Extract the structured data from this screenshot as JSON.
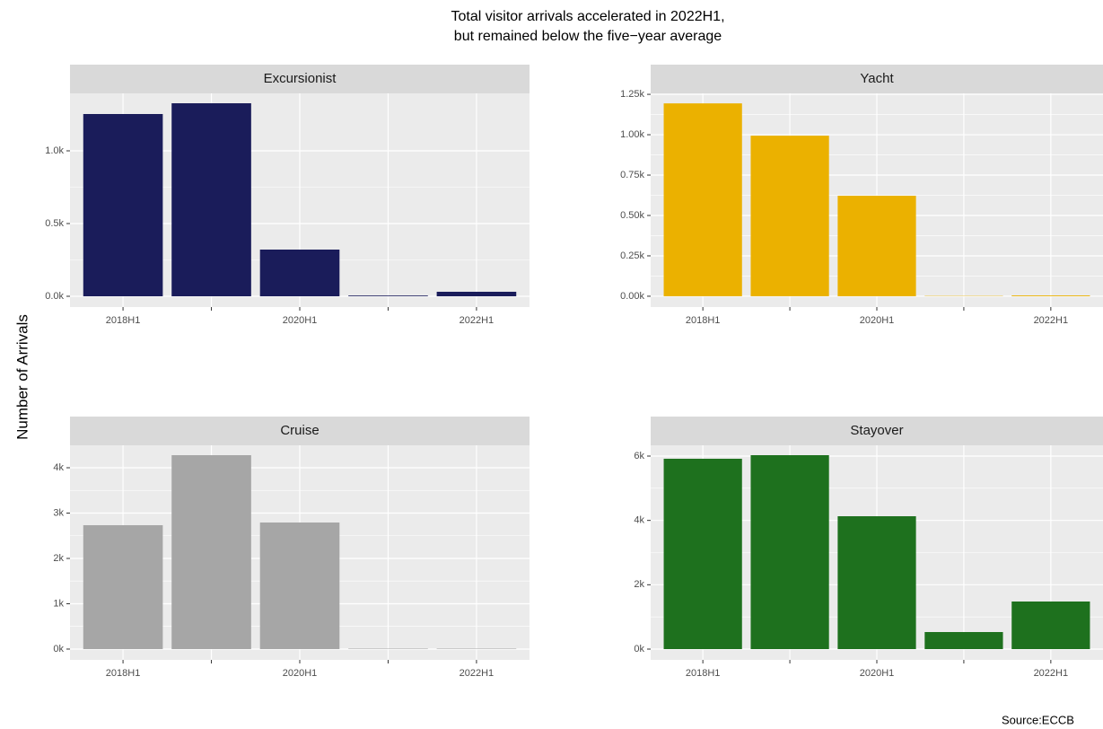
{
  "title": [
    "Total visitor arrivals accelerated in 2022H1,",
    " but remained below the five−year average"
  ],
  "y_label": "Number of Arrivals",
  "source": "Source:ECCB",
  "chart_data": [
    {
      "type": "bar",
      "title": "Excursionist",
      "categories": [
        "2018H1",
        null,
        "2020H1",
        null,
        "2022H1"
      ],
      "values": [
        1253,
        1327,
        321,
        5,
        31
      ],
      "color": "#1a1c5a",
      "ylim": [
        -74,
        1395
      ],
      "yticks": [
        {
          "value": 0,
          "label": "0.0k"
        },
        {
          "value": 500,
          "label": "0.5k"
        },
        {
          "value": 1000,
          "label": "1.0k"
        }
      ],
      "grid": true
    },
    {
      "type": "bar",
      "title": "Yacht",
      "categories": [
        "2018H1",
        null,
        "2020H1",
        null,
        "2022H1"
      ],
      "values": [
        1194,
        994,
        622,
        2,
        5
      ],
      "color": "#ebb100",
      "ylim": [
        -67,
        1256
      ],
      "yticks": [
        {
          "value": 0,
          "label": "0.00k"
        },
        {
          "value": 250,
          "label": "0.25k"
        },
        {
          "value": 500,
          "label": "0.50k"
        },
        {
          "value": 750,
          "label": "0.75k"
        },
        {
          "value": 1000,
          "label": "1.00k"
        },
        {
          "value": 1250,
          "label": "1.25k"
        }
      ],
      "grid": true
    },
    {
      "type": "bar",
      "title": "Cruise",
      "categories": [
        "2018H1",
        null,
        "2020H1",
        null,
        "2022H1"
      ],
      "values": [
        2733,
        4277,
        2792,
        10,
        10
      ],
      "color": "#a6a6a6",
      "ylim": [
        -238,
        4495
      ],
      "yticks": [
        {
          "value": 0,
          "label": "0k"
        },
        {
          "value": 1000,
          "label": "1k"
        },
        {
          "value": 2000,
          "label": "2k"
        },
        {
          "value": 3000,
          "label": "3k"
        },
        {
          "value": 4000,
          "label": "4k"
        }
      ],
      "grid": true
    },
    {
      "type": "bar",
      "title": "Stayover",
      "categories": [
        "2018H1",
        null,
        "2020H1",
        null,
        "2022H1"
      ],
      "values": [
        5917,
        6028,
        4130,
        530,
        1479
      ],
      "color": "#1e711e",
      "ylim": [
        -335,
        6335
      ],
      "yticks": [
        {
          "value": 0,
          "label": "0k"
        },
        {
          "value": 2000,
          "label": "2k"
        },
        {
          "value": 4000,
          "label": "4k"
        },
        {
          "value": 6000,
          "label": "6k"
        }
      ],
      "grid": true
    }
  ]
}
